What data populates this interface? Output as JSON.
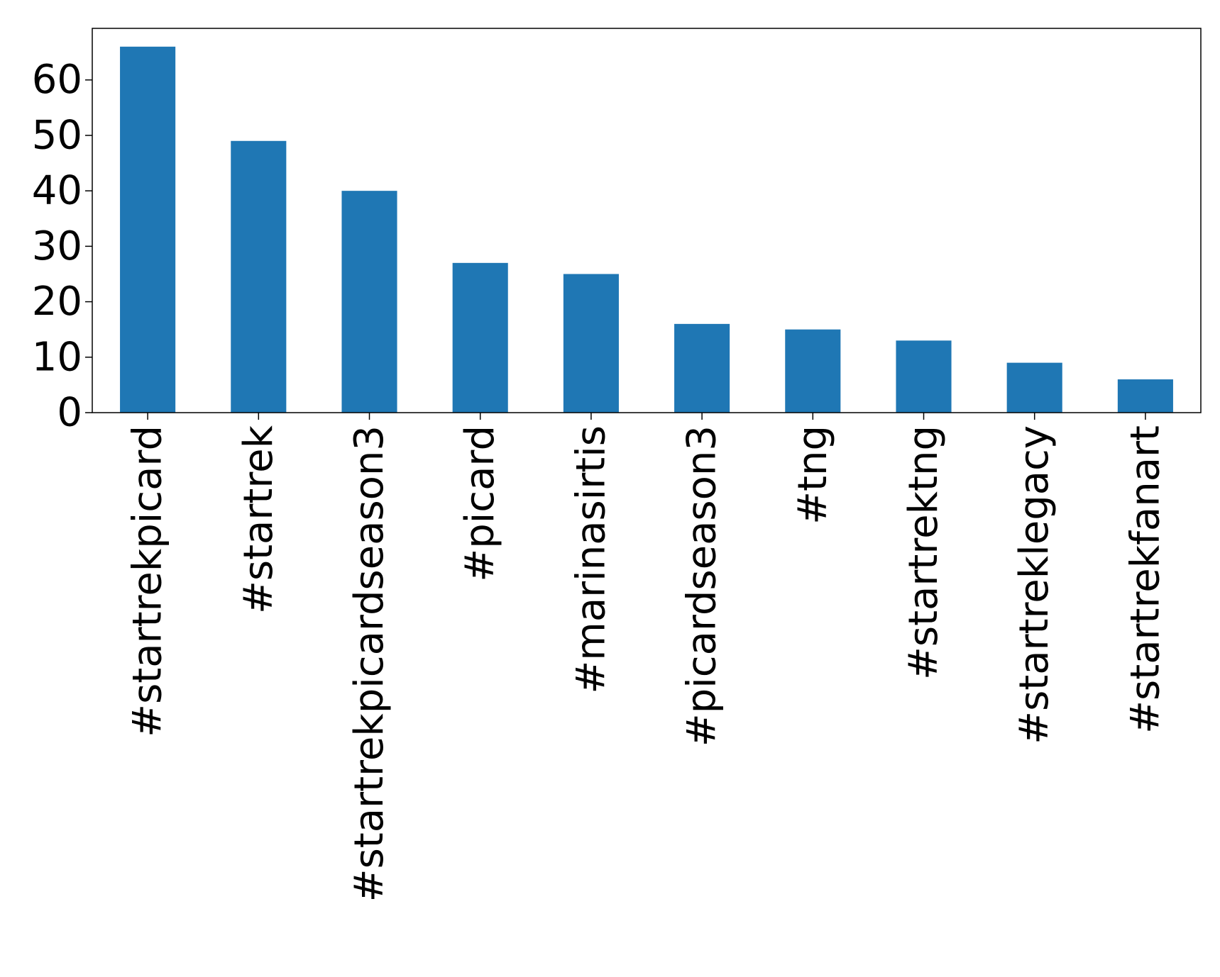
{
  "chart_data": {
    "type": "bar",
    "categories": [
      "#startrekpicard",
      "#startrek",
      "#startrekpicardseason3",
      "#picard",
      "#marinasirtis",
      "#picardseason3",
      "#tng",
      "#startrektng",
      "#startreklegacy",
      "#startrekfanart"
    ],
    "values": [
      66,
      49,
      40,
      27,
      25,
      16,
      15,
      13,
      9,
      6
    ],
    "title": "",
    "xlabel": "",
    "ylabel": "",
    "ylim": [
      0,
      69.3
    ],
    "yticks": [
      0,
      10,
      20,
      30,
      40,
      50,
      60
    ],
    "bar_color": "#1f77b4",
    "grid": false,
    "legend": "none"
  }
}
